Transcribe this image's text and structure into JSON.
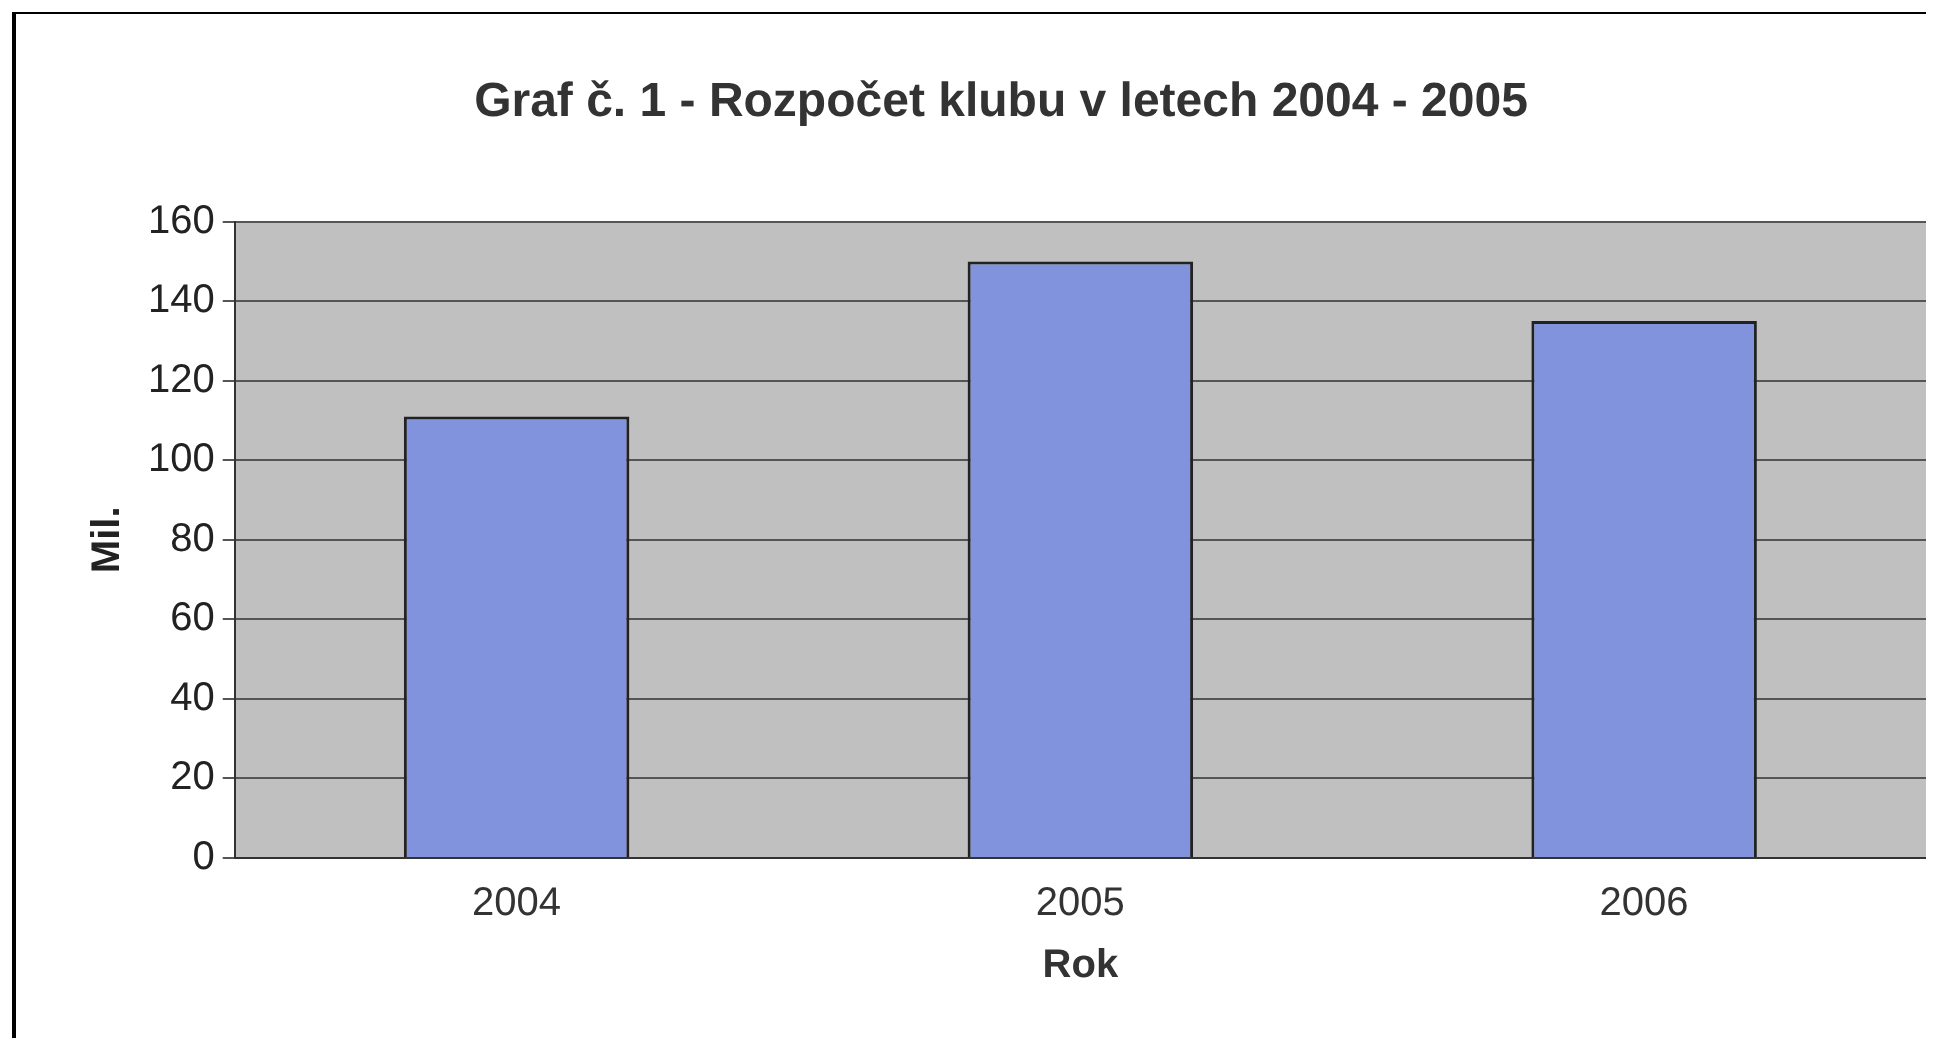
{
  "chart_data": {
    "type": "bar",
    "title": "Graf č. 1 - Rozpočet klubu v letech 2004 - 2005",
    "xlabel": "Rok",
    "ylabel": "Mil.",
    "categories": [
      "2004",
      "2005",
      "2006"
    ],
    "values": [
      111,
      150,
      135
    ],
    "color": "#8093dc",
    "ylim": [
      0,
      160
    ],
    "yticks": [
      0,
      20,
      40,
      60,
      80,
      100,
      120,
      140,
      160
    ],
    "grid": "y",
    "legend": false
  }
}
